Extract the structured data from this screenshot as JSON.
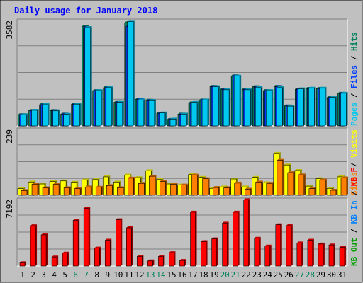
{
  "chart_data": {
    "type": "bar",
    "title": "Daily usage for January 2018",
    "categories": [
      "1",
      "2",
      "3",
      "4",
      "5",
      "6",
      "7",
      "8",
      "9",
      "10",
      "11",
      "12",
      "13",
      "14",
      "15",
      "16",
      "17",
      "18",
      "19",
      "20",
      "21",
      "22",
      "23",
      "24",
      "25",
      "26",
      "27",
      "28",
      "29",
      "30",
      "31"
    ],
    "weekend_days": [
      "6",
      "7",
      "13",
      "14",
      "20",
      "21",
      "27",
      "28"
    ],
    "colors": {
      "background": "#c0c0c0",
      "frame": "#e8e8e8",
      "grid": "#808080",
      "title": "#0000ff",
      "hits": "#00805c",
      "files": "#0040ff",
      "pages": "#00c8f0",
      "visits": "#ffff00",
      "sites": "#ff8000",
      "kbin": "#0080ff",
      "kbout": "#00a000",
      "kbf": "#ff0000",
      "weekend_label": "#00805c",
      "weekday_label": "#000000"
    },
    "panels": [
      {
        "id": "top",
        "ymax_label": "3582",
        "ymax": 3582,
        "legend": [
          {
            "text": "Hits",
            "color": "#00805c"
          },
          {
            "text": "Files",
            "color": "#0040ff"
          },
          {
            "text": "Pages",
            "color": "#00c8f0"
          }
        ],
        "legend_separator": " / ",
        "series": [
          {
            "name": "Hits",
            "color": "#00805c",
            "values": [
              380,
              520,
              720,
              520,
              400,
              740,
              3380,
              1200,
              1300,
              800,
              3500,
              900,
              870,
              430,
              220,
              400,
              780,
              880,
              1340,
              1250,
              1700,
              1240,
              1330,
              1200,
              1340,
              680,
              1250,
              1270,
              1270,
              970,
              1110
            ]
          },
          {
            "name": "Files",
            "color": "#0040ff",
            "values": [
              370,
              510,
              710,
              510,
              390,
              730,
              3340,
              1190,
              1290,
              790,
              3380,
              890,
              860,
              420,
              210,
              390,
              770,
              870,
              1330,
              1240,
              1690,
              1230,
              1320,
              1190,
              1330,
              670,
              1240,
              1260,
              1260,
              960,
              1100
            ]
          },
          {
            "name": "Pages",
            "color": "#00c8f0",
            "values": [
              380,
              530,
              720,
              510,
              390,
              740,
              3340,
              1200,
              1300,
              800,
              3550,
              880,
              860,
              440,
              230,
              400,
              800,
              880,
              1330,
              1230,
              1690,
              1230,
              1300,
              1200,
              1300,
              670,
              1260,
              1280,
              1280,
              970,
              1110
            ]
          }
        ]
      },
      {
        "id": "middle",
        "ymax_label": "239",
        "ymax": 239,
        "legend": [
          {
            "text": "Visits",
            "color": "#ffff00"
          },
          {
            "text": "Sites",
            "color": "#ff8000"
          }
        ],
        "legend_separator": " / ",
        "series": [
          {
            "name": "Visits",
            "color": "#ffff00",
            "values": [
              24,
              48,
              41,
              50,
              52,
              47,
              55,
              57,
              67,
              48,
              73,
              64,
              89,
              57,
              41,
              37,
              75,
              65,
              25,
              30,
              59,
              30,
              65,
              45,
              152,
              110,
              90,
              33,
              60,
              25,
              67
            ]
          },
          {
            "name": "Sites",
            "color": "#ff8000",
            "values": [
              17,
              40,
              27,
              40,
              27,
              24,
              30,
              29,
              35,
              27,
              62,
              43,
              69,
              50,
              40,
              37,
              73,
              60,
              28,
              27,
              44,
              22,
              48,
              43,
              127,
              82,
              74,
              24,
              55,
              18,
              63
            ]
          }
        ]
      },
      {
        "id": "bottom",
        "ymax_label": "7192",
        "ymax": 7192,
        "legend": [
          {
            "text": "KB F",
            "color": "#ff0000"
          },
          {
            "text": "KB In",
            "color": "#0080ff"
          },
          {
            "text": "KB Out",
            "color": "#00a000"
          }
        ],
        "legend_separator": " / ",
        "series": [
          {
            "name": "KB F",
            "color": "#ff0000",
            "values": [
              350,
              4350,
              3370,
              980,
              1400,
              4940,
              6240,
              1940,
              2790,
              5000,
              4130,
              1040,
              550,
              1040,
              1440,
              600,
              5820,
              2640,
              2940,
              4640,
              5820,
              7150,
              3000,
              2160,
              4460,
              4360,
              2500,
              2790,
              2380,
              2280,
              2030
            ]
          }
        ]
      }
    ],
    "legend_slash_color": "#000000"
  }
}
